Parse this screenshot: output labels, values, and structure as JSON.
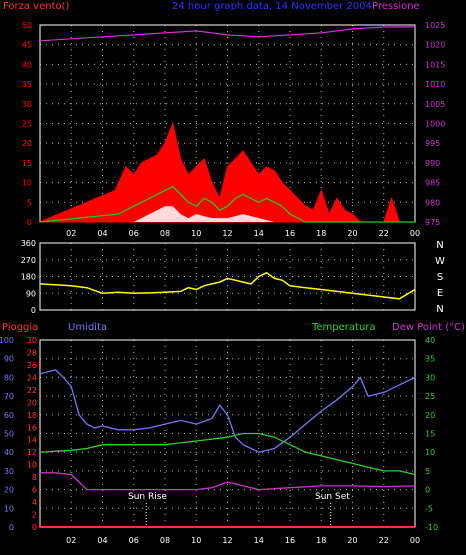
{
  "header": {
    "left_label": "Forza vento()",
    "center_title": "24 hour graph data, 14 November 2004",
    "right_label": "Pressione"
  },
  "labels": {
    "rain": "Pioggia",
    "humidity": "Umidita",
    "temperature": "Temperatura",
    "dewpoint": "Dew Point (°C)",
    "sunrise": "Sun Rise",
    "sunset": "Sun Set"
  },
  "colors": {
    "background": "#000000",
    "wind": "#ff0000",
    "pressure": "#cc33cc",
    "direction": "#ffff00",
    "humidity": "#7777ee",
    "temperature": "#33cc33",
    "dewpoint": "#cc33cc",
    "rain": "#ff3333",
    "text_white": "#ffffff",
    "title_blue": "#3333ff"
  },
  "chart_data": [
    {
      "type": "area",
      "name": "wind-pressure",
      "x_ticks": [
        "02",
        "04",
        "06",
        "08",
        "10",
        "12",
        "14",
        "16",
        "18",
        "20",
        "22",
        "00"
      ],
      "xlim_hours": [
        0,
        24
      ],
      "wind_ylim": [
        0,
        50
      ],
      "wind_yticks": [
        "0",
        "5",
        "10",
        "15",
        "20",
        "25",
        "30",
        "35",
        "40",
        "45",
        "50"
      ],
      "pressure_ylim": [
        975,
        1025
      ],
      "pressure_yticks": [
        "975",
        "980",
        "985",
        "990",
        "995",
        "1000",
        "1005",
        "1010",
        "1015",
        "1020",
        "1025"
      ],
      "series": [
        {
          "name": "wind_gust",
          "x": [
            0,
            4.8,
            5.5,
            6,
            6.5,
            7,
            7.5,
            8,
            8.5,
            9,
            9.5,
            10,
            10.5,
            11,
            11.5,
            12,
            12.5,
            13,
            13.5,
            14,
            14.5,
            15,
            15.5,
            16,
            16.5,
            17,
            17.5,
            18,
            18.5,
            19,
            19.5,
            20,
            20.5,
            21,
            21.5,
            22,
            22.5,
            23,
            24
          ],
          "values": [
            0,
            8,
            14,
            12,
            15,
            16,
            17,
            20,
            25,
            16,
            12,
            14,
            16,
            10,
            6,
            14,
            16,
            18,
            15,
            12,
            14,
            13,
            10,
            8,
            6,
            4,
            3,
            8,
            2,
            6,
            3,
            2,
            0,
            0,
            0,
            0,
            6,
            0,
            0
          ]
        },
        {
          "name": "wind_avg",
          "x": [
            0,
            5,
            6,
            6.5,
            7,
            7.5,
            8,
            8.5,
            9,
            9.5,
            10,
            10.5,
            11,
            11.5,
            12,
            12.5,
            13,
            13.5,
            14,
            14.5,
            15,
            15.5,
            16,
            16.5,
            17,
            24
          ],
          "values": [
            0,
            2,
            4,
            5,
            6,
            7,
            8,
            9,
            7,
            5,
            4,
            6,
            5,
            3,
            4,
            6,
            7,
            6,
            5,
            6,
            5,
            4,
            2,
            1,
            0,
            0
          ]
        },
        {
          "name": "wind_min",
          "x": [
            0,
            6,
            6.5,
            7,
            7.5,
            8,
            8.5,
            9,
            9.5,
            10,
            11,
            12,
            13,
            14,
            15,
            16,
            24
          ],
          "values": [
            0,
            0,
            1,
            2,
            3,
            4,
            4,
            2,
            1,
            2,
            1,
            1,
            2,
            1,
            0,
            0,
            0
          ]
        },
        {
          "name": "pressure",
          "x": [
            0,
            2,
            4,
            6,
            8,
            10,
            12,
            14,
            16,
            18,
            20,
            22,
            24
          ],
          "values": [
            1021,
            1021.5,
            1022,
            1022.5,
            1023,
            1023.5,
            1022.5,
            1022,
            1022.5,
            1023,
            1024,
            1024.5,
            1024.5
          ]
        }
      ]
    },
    {
      "type": "line",
      "name": "wind-direction",
      "ylim": [
        0,
        360
      ],
      "yticks": [
        "0",
        "90",
        "180",
        "270",
        "360"
      ],
      "compass": [
        "N",
        "W",
        "S",
        "E",
        "N"
      ],
      "series": [
        {
          "name": "direction",
          "x": [
            0,
            2,
            3,
            4,
            5,
            6,
            7,
            8,
            9,
            9.5,
            10,
            10.5,
            11,
            11.5,
            12,
            12.5,
            13,
            13.5,
            14,
            14.5,
            15,
            15.5,
            16,
            17,
            18,
            19,
            20,
            21,
            22,
            23,
            24
          ],
          "values": [
            140,
            130,
            120,
            90,
            95,
            90,
            92,
            95,
            100,
            120,
            110,
            130,
            140,
            150,
            170,
            160,
            150,
            140,
            180,
            200,
            170,
            160,
            130,
            120,
            110,
            100,
            90,
            80,
            70,
            60,
            110
          ]
        }
      ]
    },
    {
      "type": "line",
      "name": "humidity-temperature",
      "x_ticks": [
        "02",
        "04",
        "06",
        "08",
        "10",
        "12",
        "14",
        "16",
        "18",
        "20",
        "22",
        "00"
      ],
      "rain_ylim": [
        0,
        30
      ],
      "rain_yticks": [
        "0",
        "2",
        "4",
        "6",
        "8",
        "10",
        "12",
        "14",
        "16",
        "18",
        "20",
        "22",
        "24",
        "26",
        "28",
        "30"
      ],
      "humidity_ylim": [
        0,
        100
      ],
      "humidity_yticks": [
        "0",
        "10",
        "20",
        "30",
        "40",
        "50",
        "60",
        "70",
        "80",
        "90",
        "100"
      ],
      "temp_ylim": [
        -10,
        40
      ],
      "temp_yticks": [
        "-10",
        "-5",
        "0",
        "5",
        "10",
        "15",
        "20",
        "25",
        "30",
        "35",
        "40"
      ],
      "series": [
        {
          "name": "humidity",
          "x": [
            0,
            1,
            1.5,
            2,
            2.5,
            3,
            3.5,
            4,
            5,
            6,
            7,
            8,
            9,
            10,
            11,
            11.5,
            12,
            12.5,
            13,
            14,
            15,
            16,
            17,
            18,
            19,
            20,
            20.5,
            21,
            22,
            23,
            24
          ],
          "values": [
            82,
            84,
            80,
            75,
            60,
            55,
            53,
            54,
            52,
            52,
            53,
            55,
            57,
            55,
            58,
            65,
            60,
            48,
            44,
            40,
            42,
            48,
            55,
            62,
            68,
            75,
            80,
            70,
            72,
            76,
            80
          ]
        },
        {
          "name": "temperature",
          "x": [
            0,
            2,
            3,
            4,
            5,
            6,
            7,
            8,
            9,
            10,
            11,
            12,
            13,
            14,
            15,
            16,
            17,
            18,
            19,
            20,
            21,
            22,
            23,
            24
          ],
          "values": [
            10,
            10.5,
            11,
            12,
            12,
            12,
            12,
            12,
            12.5,
            13,
            13.5,
            14,
            15,
            15,
            14,
            12,
            10,
            9,
            8,
            7,
            6,
            5,
            5,
            4
          ]
        },
        {
          "name": "dewpoint",
          "x": [
            0,
            1,
            2,
            2.5,
            3,
            4,
            6,
            8,
            10,
            11,
            12,
            13,
            14,
            16,
            18,
            20,
            22,
            24
          ],
          "values": [
            4.5,
            4.5,
            4,
            2,
            0,
            0,
            0,
            0,
            0,
            0.5,
            2,
            1,
            0,
            0.5,
            1,
            1,
            0.8,
            1
          ]
        },
        {
          "name": "rain",
          "x": [
            0,
            24
          ],
          "values": [
            0,
            0
          ]
        }
      ],
      "sun_rise_hour": 6.8,
      "sun_set_hour": 18.6
    }
  ]
}
